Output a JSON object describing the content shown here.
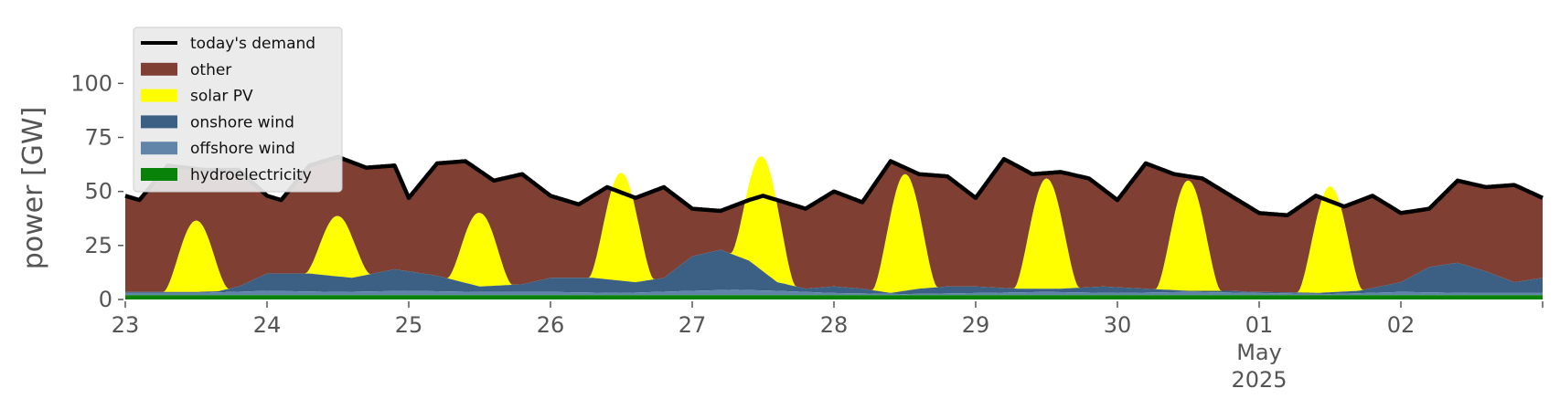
{
  "chart_data": {
    "type": "area",
    "stacked": true,
    "ylabel": "power [GW]",
    "ylim": [
      0,
      120
    ],
    "yticks": [
      0,
      25,
      50,
      75,
      100
    ],
    "xlim_days": [
      0,
      10
    ],
    "x_tick_labels": [
      "23",
      "24",
      "25",
      "26",
      "27",
      "28",
      "29",
      "30",
      "01",
      "02"
    ],
    "x_secondary_label": {
      "text": "May",
      "under_tick": "01"
    },
    "x_year_label": {
      "text": "2025",
      "under_tick": "01"
    },
    "x_start_date": "2025-04-23",
    "legend_position": "top-left",
    "legend": [
      {
        "key": "demand",
        "label": "today's demand",
        "kind": "line",
        "color": "#000000"
      },
      {
        "key": "other",
        "label": "other",
        "kind": "area",
        "color": "#803f33"
      },
      {
        "key": "solar",
        "label": "solar PV",
        "kind": "area",
        "color": "#ffff00"
      },
      {
        "key": "onshore",
        "label": "onshore wind",
        "kind": "area",
        "color": "#3c6083"
      },
      {
        "key": "offshore",
        "label": "offshore wind",
        "kind": "area",
        "color": "#6185a8"
      },
      {
        "key": "hydro",
        "label": "hydroelectricity",
        "kind": "area",
        "color": "#088208"
      }
    ],
    "hydro": {
      "x": [
        0,
        1,
        2,
        3,
        4,
        5,
        6,
        7,
        8,
        9,
        10
      ],
      "values": [
        2,
        2,
        2,
        2,
        2,
        2,
        2,
        2,
        2,
        2,
        2
      ]
    },
    "offshore_wind": {
      "x": [
        0,
        0.5,
        1,
        1.5,
        2,
        2.5,
        3,
        3.5,
        4,
        4.3,
        4.6,
        5,
        5.5,
        6,
        6.5,
        7,
        7.5,
        8,
        8.5,
        9,
        9.5,
        10
      ],
      "values": [
        1,
        1,
        2,
        1.5,
        2,
        1.5,
        1.5,
        1,
        2,
        2.5,
        2,
        1,
        0.5,
        1,
        1.5,
        1,
        1.5,
        1,
        0.5,
        1.5,
        1,
        1
      ]
    },
    "onshore_wind_top": {
      "x": [
        0,
        0.3,
        0.6,
        0.8,
        1.0,
        1.3,
        1.6,
        1.9,
        2.2,
        2.5,
        2.8,
        3.0,
        3.3,
        3.6,
        3.8,
        4.0,
        4.2,
        4.4,
        4.6,
        4.8,
        5.0,
        5.2,
        5.4,
        5.6,
        5.8,
        6.0,
        6.3,
        6.6,
        6.9,
        7.2,
        7.5,
        7.8,
        8.1,
        8.4,
        8.7,
        9.0,
        9.2,
        9.4,
        9.6,
        9.8,
        10.0
      ],
      "values": [
        2.5,
        2.5,
        3,
        6,
        12,
        12,
        10,
        14,
        11,
        6,
        7,
        10,
        10,
        8,
        10,
        20,
        23,
        18,
        8,
        5,
        6,
        5,
        3,
        5,
        6,
        6,
        5,
        5,
        6,
        5,
        4,
        4,
        3,
        3,
        4,
        8,
        15,
        17,
        13,
        8,
        10
      ]
    },
    "solar_peaks": [
      {
        "day": 0,
        "peak": 33
      },
      {
        "day": 1,
        "peak": 28
      },
      {
        "day": 2,
        "peak": 34
      },
      {
        "day": 3,
        "peak": 50
      },
      {
        "day": 4,
        "peak": 53
      },
      {
        "day": 5,
        "peak": 54
      },
      {
        "day": 6,
        "peak": 51
      },
      {
        "day": 7,
        "peak": 51
      },
      {
        "day": 8,
        "peak": 49
      },
      {
        "day": 9,
        "peak": 0
      }
    ],
    "demand": {
      "x": [
        0,
        0.1,
        0.3,
        0.55,
        0.8,
        1.0,
        1.1,
        1.3,
        1.5,
        1.7,
        1.9,
        2.0,
        2.2,
        2.4,
        2.6,
        2.8,
        3.0,
        3.2,
        3.4,
        3.6,
        3.8,
        4.0,
        4.2,
        4.4,
        4.5,
        4.6,
        4.8,
        5.0,
        5.2,
        5.4,
        5.6,
        5.8,
        6.0,
        6.2,
        6.4,
        6.6,
        6.8,
        7.0,
        7.2,
        7.4,
        7.6,
        7.8,
        8.0,
        8.2,
        8.4,
        8.6,
        8.8,
        9.0,
        9.2,
        9.4,
        9.6,
        9.8,
        10.0
      ],
      "values": [
        48,
        46,
        62,
        60,
        60,
        48,
        46,
        62,
        66,
        61,
        62,
        47,
        63,
        64,
        55,
        58,
        48,
        44,
        52,
        47,
        52,
        42,
        41,
        46,
        48,
        46,
        42,
        50,
        45,
        64,
        58,
        57,
        47,
        65,
        58,
        59,
        56,
        46,
        63,
        58,
        56,
        48,
        40,
        39,
        48,
        43,
        48,
        40,
        42,
        55,
        52,
        53,
        47
      ]
    }
  }
}
